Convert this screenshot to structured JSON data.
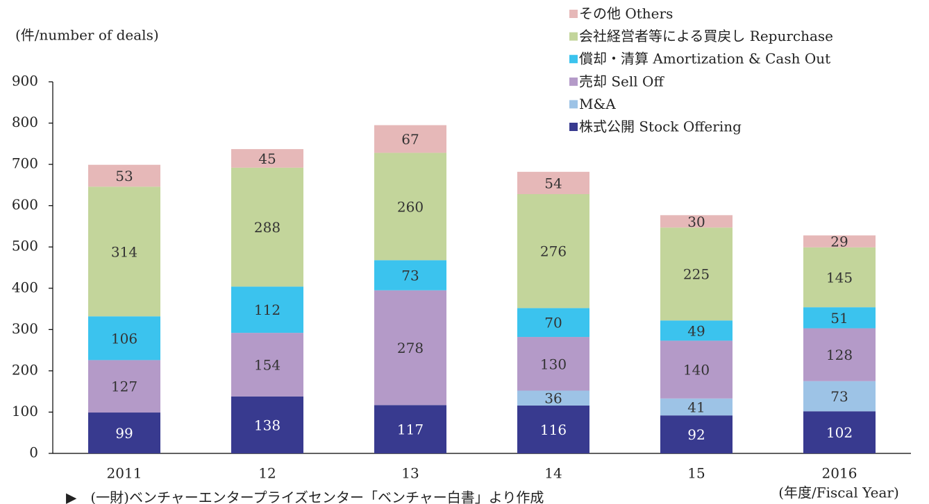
{
  "chart_data": {
    "type": "stacked_bar",
    "y_axis_label": "(件/number of deals)",
    "x_axis_label": "(年度/Fiscal Year)",
    "note": "▶　(一財)ベンチャーエンタープライズセンター「ベンチャー白書」より作成",
    "categories": [
      "2011",
      "12",
      "13",
      "14",
      "15",
      "2016"
    ],
    "series": [
      {
        "name": "株式公開 Stock Offering",
        "color": "#383a8f",
        "values": [
          99,
          138,
          117,
          116,
          92,
          102
        ]
      },
      {
        "name": "M&A",
        "color": "#9dc3e6",
        "values": [
          null,
          null,
          null,
          36,
          41,
          73
        ]
      },
      {
        "name": "売却 Sell Off",
        "color": "#b49ac8",
        "values": [
          127,
          154,
          278,
          130,
          140,
          128
        ]
      },
      {
        "name": "償却・清算 Amortization & Cash Out",
        "color": "#3bc3ee",
        "values": [
          106,
          112,
          73,
          70,
          49,
          51
        ]
      },
      {
        "name": "会社経営者等による買戻し Repurchase",
        "color": "#c3d59b",
        "values": [
          314,
          288,
          260,
          276,
          225,
          145
        ]
      },
      {
        "name": "その他 Others",
        "color": "#e6b8b8",
        "values": [
          53,
          45,
          67,
          54,
          30,
          29
        ]
      }
    ],
    "ylim": [
      0,
      900
    ],
    "yticks": [
      0,
      100,
      200,
      300,
      400,
      500,
      600,
      700,
      800,
      900
    ],
    "grid": false,
    "legend": "top-right"
  }
}
